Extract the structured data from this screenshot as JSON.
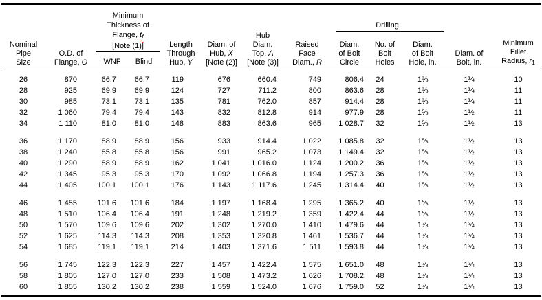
{
  "colors": {
    "text": "#000000",
    "background": "#ffffff",
    "rule": "#000000",
    "spellcheck_underline": "#e00000"
  },
  "table": {
    "header": {
      "pipe_size": {
        "lines": [
          [
            {
              "t": "Nominal"
            }
          ],
          [
            {
              "t": "Pipe"
            }
          ],
          [
            {
              "t": "Size"
            }
          ]
        ]
      },
      "od_flange": {
        "lines": [
          [
            {
              "t": "O.D. of"
            }
          ],
          [
            {
              "t": "Flange, "
            },
            {
              "t": "O",
              "i": true
            }
          ]
        ]
      },
      "thickness_group": {
        "lines": [
          [
            {
              "t": "Minimum"
            }
          ],
          [
            {
              "t": "Thickness of"
            }
          ],
          [
            {
              "t": "Flange, "
            },
            {
              "t": "t",
              "i": true,
              "spell": true
            },
            {
              "t": "f",
              "i": true,
              "sub": true,
              "spell": true
            }
          ],
          [
            {
              "t": "[Note (1)]"
            }
          ]
        ]
      },
      "wnf": {
        "lines": [
          [
            {
              "t": "WNF"
            }
          ]
        ]
      },
      "blind": {
        "lines": [
          [
            {
              "t": "Blind"
            }
          ]
        ]
      },
      "length_hub": {
        "lines": [
          [
            {
              "t": "Length"
            }
          ],
          [
            {
              "t": "Through"
            }
          ],
          [
            {
              "t": "Hub, "
            },
            {
              "t": "Y",
              "i": true
            }
          ]
        ]
      },
      "diam_hub": {
        "lines": [
          [
            {
              "t": "Diam. of"
            }
          ],
          [
            {
              "t": "Hub, "
            },
            {
              "t": "X",
              "i": true
            }
          ],
          [
            {
              "t": "[Note (2)]"
            }
          ]
        ]
      },
      "hub_top": {
        "lines": [
          [
            {
              "t": "Hub"
            }
          ],
          [
            {
              "t": "Diam."
            }
          ],
          [
            {
              "t": "Top, "
            },
            {
              "t": "A",
              "i": true
            }
          ],
          [
            {
              "t": "[Note (3)]"
            }
          ]
        ]
      },
      "raised_face": {
        "lines": [
          [
            {
              "t": "Raised"
            }
          ],
          [
            {
              "t": "Face"
            }
          ],
          [
            {
              "t": "Diam., "
            },
            {
              "t": "R",
              "i": true
            }
          ]
        ]
      },
      "drilling": {
        "lines": [
          [
            {
              "t": "Drilling"
            }
          ]
        ]
      },
      "bolt_circle": {
        "lines": [
          [
            {
              "t": "Diam."
            }
          ],
          [
            {
              "t": "of Bolt"
            }
          ],
          [
            {
              "t": "Circle"
            }
          ]
        ]
      },
      "bolt_holes": {
        "lines": [
          [
            {
              "t": "No. of"
            }
          ],
          [
            {
              "t": "Bolt"
            }
          ],
          [
            {
              "t": "Holes"
            }
          ]
        ]
      },
      "bolt_hole_diam": {
        "lines": [
          [
            {
              "t": "Diam."
            }
          ],
          [
            {
              "t": "of Bolt"
            }
          ],
          [
            {
              "t": "Hole, in."
            }
          ]
        ]
      },
      "bolt_diam": {
        "lines": [
          [
            {
              "t": "Diam. of"
            }
          ],
          [
            {
              "t": "Bolt, in."
            }
          ]
        ]
      },
      "fillet": {
        "lines": [
          [
            {
              "t": "Minimum"
            }
          ],
          [
            {
              "t": "Fillet"
            }
          ],
          [
            {
              "t": "Radius, "
            },
            {
              "t": "r",
              "i": true
            },
            {
              "t": "1",
              "sub": true
            }
          ]
        ]
      }
    },
    "column_keys": [
      "nominal_pipe_size",
      "od_of_flange_O",
      "min_thickness_WNF",
      "min_thickness_Blind",
      "length_through_hub_Y",
      "diam_of_hub_X",
      "hub_diam_top_A",
      "raised_face_diam_R",
      "diam_of_bolt_circle",
      "no_of_bolt_holes",
      "diam_of_bolt_hole_in",
      "diam_of_bolt_in",
      "min_fillet_radius_r1"
    ],
    "groups": [
      [
        [
          "26",
          "870",
          "66.7",
          "66.7",
          "119",
          "676",
          "660.4",
          "749",
          "806.4",
          "24",
          "1⅜",
          "1¼",
          "10"
        ],
        [
          "28",
          "925",
          "69.9",
          "69.9",
          "124",
          "727",
          "711.2",
          "800",
          "863.6",
          "28",
          "1⅜",
          "1¼",
          "11"
        ],
        [
          "30",
          "985",
          "73.1",
          "73.1",
          "135",
          "781",
          "762.0",
          "857",
          "914.4",
          "28",
          "1⅜",
          "1¼",
          "11"
        ],
        [
          "32",
          "1 060",
          "79.4",
          "79.4",
          "143",
          "832",
          "812.8",
          "914",
          "977.9",
          "28",
          "1⅝",
          "1½",
          "11"
        ],
        [
          "34",
          "1 110",
          "81.0",
          "81.0",
          "148",
          "883",
          "863.6",
          "965",
          "1 028.7",
          "32",
          "1⅝",
          "1½",
          "13"
        ]
      ],
      [
        [
          "36",
          "1 170",
          "88.9",
          "88.9",
          "156",
          "933",
          "914.4",
          "1 022",
          "1 085.8",
          "32",
          "1⅝",
          "1½",
          "13"
        ],
        [
          "38",
          "1 240",
          "85.8",
          "85.8",
          "156",
          "991",
          "965.2",
          "1 073",
          "1 149.4",
          "32",
          "1⅝",
          "1½",
          "13"
        ],
        [
          "40",
          "1 290",
          "88.9",
          "88.9",
          "162",
          "1 041",
          "1 016.0",
          "1 124",
          "1 200.2",
          "36",
          "1⅝",
          "1½",
          "13"
        ],
        [
          "42",
          "1 345",
          "95.3",
          "95.3",
          "170",
          "1 092",
          "1 066.8",
          "1 194",
          "1 257.3",
          "36",
          "1⅝",
          "1½",
          "13"
        ],
        [
          "44",
          "1 405",
          "100.1",
          "100.1",
          "176",
          "1 143",
          "1 117.6",
          "1 245",
          "1 314.4",
          "40",
          "1⅝",
          "1½",
          "13"
        ]
      ],
      [
        [
          "46",
          "1 455",
          "101.6",
          "101.6",
          "184",
          "1 197",
          "1 168.4",
          "1 295",
          "1 365.2",
          "40",
          "1⅝",
          "1½",
          "13"
        ],
        [
          "48",
          "1 510",
          "106.4",
          "106.4",
          "191",
          "1 248",
          "1 219.2",
          "1 359",
          "1 422.4",
          "44",
          "1⅝",
          "1½",
          "13"
        ],
        [
          "50",
          "1 570",
          "109.6",
          "109.6",
          "202",
          "1 302",
          "1 270.0",
          "1 410",
          "1 479.6",
          "44",
          "1⅞",
          "1¾",
          "13"
        ],
        [
          "52",
          "1 625",
          "114.3",
          "114.3",
          "208",
          "1 353",
          "1 320.8",
          "1 461",
          "1 536.7",
          "44",
          "1⅞",
          "1¾",
          "13"
        ],
        [
          "54",
          "1 685",
          "119.1",
          "119.1",
          "214",
          "1 403",
          "1 371.6",
          "1 511",
          "1 593.8",
          "44",
          "1⅞",
          "1¾",
          "13"
        ]
      ],
      [
        [
          "56",
          "1 745",
          "122.3",
          "122.3",
          "227",
          "1 457",
          "1 422.4",
          "1 575",
          "1 651.0",
          "48",
          "1⅞",
          "1¾",
          "13"
        ],
        [
          "58",
          "1 805",
          "127.0",
          "127.0",
          "233",
          "1 508",
          "1 473.2",
          "1 626",
          "1 708.2",
          "48",
          "1⅞",
          "1¾",
          "13"
        ],
        [
          "60",
          "1 855",
          "130.2",
          "130.2",
          "238",
          "1 559",
          "1 524.0",
          "1 676",
          "1 759.0",
          "52",
          "1⅞",
          "1¾",
          "13"
        ]
      ]
    ]
  }
}
